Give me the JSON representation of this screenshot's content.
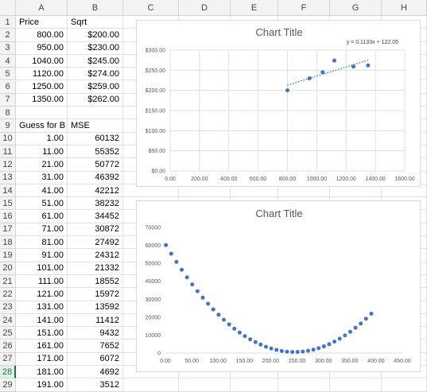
{
  "columns": [
    "A",
    "B",
    "C",
    "D",
    "E",
    "F",
    "G",
    "H"
  ],
  "row_numbers": [
    "1",
    "2",
    "3",
    "4",
    "5",
    "6",
    "7",
    "8",
    "9",
    "10",
    "11",
    "12",
    "13",
    "14",
    "15",
    "16",
    "17",
    "18",
    "19",
    "20",
    "21",
    "22",
    "23",
    "24",
    "25",
    "26",
    "27",
    "28",
    "29"
  ],
  "active_row": "28",
  "cells": {
    "A": [
      "Price",
      "800.00",
      "950.00",
      "1040.00",
      "1120.00",
      "1250.00",
      "1350.00",
      "",
      "Guess for B",
      "1.00",
      "11.00",
      "21.00",
      "31.00",
      "41.00",
      "51.00",
      "61.00",
      "71.00",
      "81.00",
      "91.00",
      "101.00",
      "111.00",
      "121.00",
      "131.00",
      "141.00",
      "151.00",
      "161.00",
      "171.00",
      "181.00",
      "191.00"
    ],
    "B": [
      "Sqrt",
      "$200.00",
      "$230.00",
      "$245.00",
      "$274.00",
      "$259.00",
      "$262.00",
      "",
      "MSE",
      "60132",
      "55352",
      "50772",
      "46392",
      "42212",
      "38232",
      "34452",
      "30872",
      "27492",
      "24312",
      "21332",
      "18552",
      "15972",
      "13592",
      "11412",
      "9432",
      "7652",
      "6072",
      "4692",
      "3512"
    ]
  },
  "cell_align": {
    "A": [
      "txt",
      "num",
      "num",
      "num",
      "num",
      "num",
      "num",
      "num",
      "txt",
      "num",
      "num",
      "num",
      "num",
      "num",
      "num",
      "num",
      "num",
      "num",
      "num",
      "num",
      "num",
      "num",
      "num",
      "num",
      "num",
      "num",
      "num",
      "num",
      "num"
    ],
    "B": [
      "txt",
      "num",
      "num",
      "num",
      "num",
      "num",
      "num",
      "num",
      "txt",
      "num",
      "num",
      "num",
      "num",
      "num",
      "num",
      "num",
      "num",
      "num",
      "num",
      "num",
      "num",
      "num",
      "num",
      "num",
      "num",
      "num",
      "num",
      "num",
      "num"
    ]
  },
  "chart_data": [
    {
      "type": "scatter",
      "title": "Chart Title",
      "trendline_equation": "y = 0.1133x + 122.05",
      "trendline": {
        "slope": 0.1133,
        "intercept": 122.05,
        "x_range": [
          800,
          1350
        ]
      },
      "x": [
        800,
        950,
        1040,
        1120,
        1250,
        1350
      ],
      "y": [
        200,
        230,
        245,
        274,
        259,
        262
      ],
      "xlim": [
        0,
        1600
      ],
      "ylim": [
        0,
        300
      ],
      "x_ticks": [
        "0.00",
        "200.00",
        "400.00",
        "600.00",
        "800.00",
        "1000.00",
        "1200.00",
        "1400.00",
        "1600.00"
      ],
      "y_ticks": [
        "$0.00",
        "$50.00",
        "$100.00",
        "$150.00",
        "$200.00",
        "$250.00",
        "$300.00"
      ],
      "grid": true,
      "color": "#4472c4"
    },
    {
      "type": "scatter",
      "title": "Chart Title",
      "x": [
        1,
        11,
        21,
        31,
        41,
        51,
        61,
        71,
        81,
        91,
        101,
        111,
        121,
        131,
        141,
        151,
        161,
        171,
        181,
        191,
        201,
        211,
        221,
        231,
        241,
        251,
        261,
        271,
        281,
        291,
        301,
        311,
        321,
        331,
        341,
        351,
        361,
        371,
        381,
        391
      ],
      "y": [
        60132,
        55352,
        50772,
        46392,
        42212,
        38232,
        34452,
        30872,
        27492,
        24312,
        21332,
        18552,
        15972,
        13592,
        11412,
        9432,
        7652,
        6072,
        4692,
        3512,
        2532,
        1752,
        1172,
        792,
        612,
        632,
        852,
        1272,
        1892,
        2712,
        3732,
        4952,
        6372,
        7992,
        9812,
        11832,
        14052,
        16472,
        19092,
        21912
      ],
      "xlim": [
        0,
        450
      ],
      "ylim": [
        0,
        70000
      ],
      "x_ticks": [
        "0.00",
        "50.00",
        "100.00",
        "150.00",
        "200.00",
        "250.00",
        "300.00",
        "350.00",
        "400.00",
        "450.00"
      ],
      "y_ticks": [
        "0",
        "10000",
        "20000",
        "30000",
        "40000",
        "50000",
        "60000",
        "70000"
      ],
      "grid": false,
      "color": "#4472c4"
    }
  ]
}
